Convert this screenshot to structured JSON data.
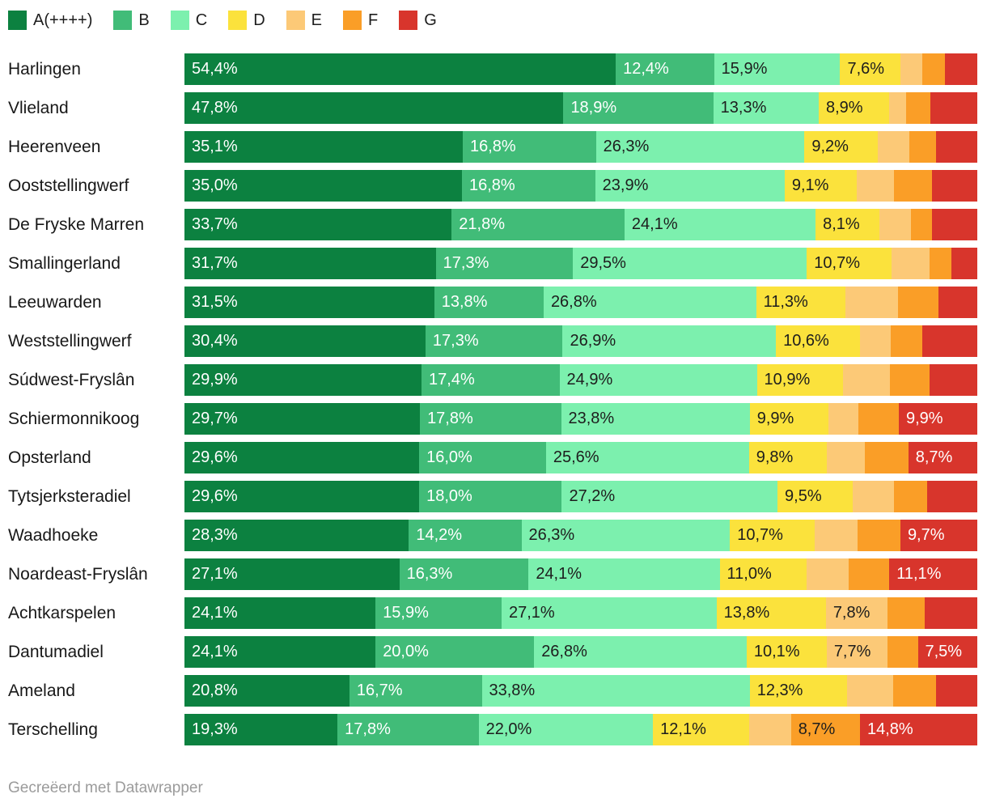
{
  "legend": {
    "items": [
      {
        "key": "a",
        "label": "A(++++)",
        "color": "#0c8140",
        "dark_text": false
      },
      {
        "key": "b",
        "label": "B",
        "color": "#41bc78",
        "dark_text": false
      },
      {
        "key": "c",
        "label": "C",
        "color": "#7cf0ae",
        "dark_text": true
      },
      {
        "key": "d",
        "label": "D",
        "color": "#fbe23c",
        "dark_text": true
      },
      {
        "key": "e",
        "label": "E",
        "color": "#fcc977",
        "dark_text": true
      },
      {
        "key": "f",
        "label": "F",
        "color": "#fa9e27",
        "dark_text": true
      },
      {
        "key": "g",
        "label": "G",
        "color": "#d8352c",
        "dark_text": false
      }
    ]
  },
  "chart_data": {
    "type": "bar",
    "stacked": true,
    "orientation": "horizontal",
    "unit": "%",
    "xlim": [
      0,
      100
    ],
    "categories": [
      "A(++++)",
      "B",
      "C",
      "D",
      "E",
      "F",
      "G"
    ],
    "decimal_separator": ",",
    "rows": [
      {
        "name": "Harlingen",
        "values": [
          54.4,
          12.4,
          15.9,
          7.6,
          2.8,
          2.8,
          4.1
        ],
        "label_shown": [
          true,
          true,
          true,
          true,
          false,
          false,
          false
        ]
      },
      {
        "name": "Vlieland",
        "values": [
          47.8,
          18.9,
          13.3,
          8.9,
          2.1,
          3.1,
          5.9
        ],
        "label_shown": [
          true,
          true,
          true,
          true,
          false,
          false,
          false
        ]
      },
      {
        "name": "Heerenveen",
        "values": [
          35.1,
          16.8,
          26.3,
          9.2,
          4.0,
          3.4,
          5.2
        ],
        "label_shown": [
          true,
          true,
          true,
          true,
          false,
          false,
          false
        ]
      },
      {
        "name": "Ooststellingwerf",
        "values": [
          35.0,
          16.8,
          23.9,
          9.1,
          4.7,
          4.8,
          5.7
        ],
        "label_shown": [
          true,
          true,
          true,
          true,
          false,
          false,
          false
        ]
      },
      {
        "name": "De Fryske Marren",
        "values": [
          33.7,
          21.8,
          24.1,
          8.1,
          3.9,
          2.7,
          5.7
        ],
        "label_shown": [
          true,
          true,
          true,
          true,
          false,
          false,
          false
        ]
      },
      {
        "name": "Smallingerland",
        "values": [
          31.7,
          17.3,
          29.5,
          10.7,
          4.8,
          2.7,
          3.3
        ],
        "label_shown": [
          true,
          true,
          true,
          true,
          false,
          false,
          false
        ]
      },
      {
        "name": "Leeuwarden",
        "values": [
          31.5,
          13.8,
          26.8,
          11.3,
          6.6,
          5.1,
          4.9
        ],
        "label_shown": [
          true,
          true,
          true,
          true,
          false,
          false,
          false
        ]
      },
      {
        "name": "Weststellingwerf",
        "values": [
          30.4,
          17.3,
          26.9,
          10.6,
          3.9,
          4.0,
          6.9
        ],
        "label_shown": [
          true,
          true,
          true,
          true,
          false,
          false,
          false
        ]
      },
      {
        "name": "Súdwest-Fryslân",
        "values": [
          29.9,
          17.4,
          24.9,
          10.9,
          5.9,
          5.0,
          6.0
        ],
        "label_shown": [
          true,
          true,
          true,
          true,
          false,
          false,
          false
        ]
      },
      {
        "name": "Schiermonnikoog",
        "values": [
          29.7,
          17.8,
          23.8,
          9.9,
          3.8,
          5.1,
          9.9
        ],
        "label_shown": [
          true,
          true,
          true,
          true,
          false,
          false,
          true
        ]
      },
      {
        "name": "Opsterland",
        "values": [
          29.6,
          16.0,
          25.6,
          9.8,
          4.8,
          5.5,
          8.7
        ],
        "label_shown": [
          true,
          true,
          true,
          true,
          false,
          false,
          true
        ]
      },
      {
        "name": "Tytsjerksteradiel",
        "values": [
          29.6,
          18.0,
          27.2,
          9.5,
          5.2,
          4.2,
          6.3
        ],
        "label_shown": [
          true,
          true,
          true,
          true,
          false,
          false,
          false
        ]
      },
      {
        "name": "Waadhoeke",
        "values": [
          28.3,
          14.2,
          26.3,
          10.7,
          5.4,
          5.4,
          9.7
        ],
        "label_shown": [
          true,
          true,
          true,
          true,
          false,
          false,
          true
        ]
      },
      {
        "name": "Noardeast-Fryslân",
        "values": [
          27.1,
          16.3,
          24.1,
          11.0,
          5.3,
          5.1,
          11.1
        ],
        "label_shown": [
          true,
          true,
          true,
          true,
          false,
          false,
          true
        ]
      },
      {
        "name": "Achtkarspelen",
        "values": [
          24.1,
          15.9,
          27.1,
          13.8,
          7.8,
          4.7,
          6.6
        ],
        "label_shown": [
          true,
          true,
          true,
          true,
          true,
          false,
          false
        ]
      },
      {
        "name": "Dantumadiel",
        "values": [
          24.1,
          20.0,
          26.8,
          10.1,
          7.7,
          3.8,
          7.5
        ],
        "label_shown": [
          true,
          true,
          true,
          true,
          true,
          false,
          true
        ]
      },
      {
        "name": "Ameland",
        "values": [
          20.8,
          16.7,
          33.8,
          12.3,
          5.8,
          5.4,
          5.2
        ],
        "label_shown": [
          true,
          true,
          true,
          true,
          false,
          false,
          false
        ]
      },
      {
        "name": "Terschelling",
        "values": [
          19.3,
          17.8,
          22.0,
          12.1,
          5.3,
          8.7,
          14.8
        ],
        "label_shown": [
          true,
          true,
          true,
          true,
          false,
          true,
          true
        ]
      }
    ]
  },
  "footer": {
    "attribution": "Gecreëerd met Datawrapper"
  },
  "colors": {
    "background": "#ffffff",
    "row_label_text": "#181818",
    "value_text_dark": "#1d1d1d",
    "value_text_light": "#ffffff",
    "footer_text": "#9b9b9b"
  }
}
